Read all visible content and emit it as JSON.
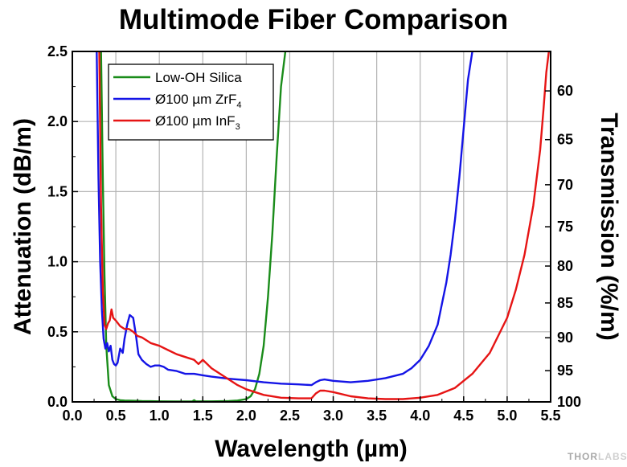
{
  "chart_data": {
    "type": "line",
    "title": "Multimode Fiber Comparison",
    "xlabel": "Wavelength (µm)",
    "ylabel": "Attenuation (dB/m)",
    "y2label": "Transmission (%/m)",
    "xlim": [
      0,
      5.5
    ],
    "ylim": [
      0,
      2.5
    ],
    "x_ticks": [
      0.0,
      0.5,
      1.0,
      1.5,
      2.0,
      2.5,
      3.0,
      3.5,
      4.0,
      4.5,
      5.0,
      5.5
    ],
    "x_tick_labels": [
      "0.0",
      "0.5",
      "1.0",
      "1.5",
      "2.0",
      "2.5",
      "3.0",
      "3.5",
      "4.0",
      "4.5",
      "5.0",
      "5.5"
    ],
    "y_ticks": [
      0.0,
      0.5,
      1.0,
      1.5,
      2.0,
      2.5
    ],
    "y_tick_labels": [
      "0.0",
      "0.5",
      "1.0",
      "1.5",
      "2.0",
      "2.5"
    ],
    "y2_ticks": [
      60,
      65,
      70,
      75,
      80,
      85,
      90,
      95,
      100
    ],
    "y2_tick_labels": [
      "60",
      "65",
      "70",
      "75",
      "80",
      "85",
      "90",
      "95",
      "100"
    ],
    "grid": true,
    "legend_position": "top-left",
    "series": [
      {
        "name": "Low-OH Silica",
        "name_parts": [
          "Low-OH Silica",
          ""
        ],
        "color": "#1a8c1a",
        "x": [
          0.33,
          0.35,
          0.37,
          0.39,
          0.42,
          0.46,
          0.5,
          0.55,
          0.6,
          0.7,
          0.8,
          0.9,
          1.0,
          1.2,
          1.38,
          1.4,
          1.42,
          1.6,
          1.8,
          1.9,
          2.0,
          2.05,
          2.1,
          2.15,
          2.2,
          2.25,
          2.3,
          2.35,
          2.4,
          2.45
        ],
        "y": [
          2.5,
          1.6,
          0.9,
          0.4,
          0.12,
          0.04,
          0.02,
          0.012,
          0.01,
          0.008,
          0.006,
          0.005,
          0.004,
          0.003,
          0.004,
          0.012,
          0.004,
          0.004,
          0.006,
          0.01,
          0.02,
          0.04,
          0.09,
          0.2,
          0.4,
          0.75,
          1.2,
          1.75,
          2.25,
          2.5
        ]
      },
      {
        "name": "Ø100 µm ZrF4",
        "name_parts": [
          "Ø100 µm ZrF",
          "4"
        ],
        "color": "#1414e6",
        "x": [
          0.28,
          0.3,
          0.32,
          0.34,
          0.36,
          0.38,
          0.4,
          0.42,
          0.44,
          0.46,
          0.48,
          0.5,
          0.52,
          0.55,
          0.58,
          0.6,
          0.63,
          0.66,
          0.7,
          0.73,
          0.76,
          0.8,
          0.85,
          0.9,
          0.95,
          1.0,
          1.05,
          1.1,
          1.2,
          1.3,
          1.4,
          1.5,
          1.6,
          1.8,
          2.0,
          2.2,
          2.4,
          2.6,
          2.75,
          2.8,
          2.85,
          2.9,
          3.0,
          3.2,
          3.4,
          3.6,
          3.8,
          3.9,
          4.0,
          4.1,
          4.2,
          4.25,
          4.3,
          4.35,
          4.4,
          4.45,
          4.5,
          4.55,
          4.6
        ],
        "y": [
          2.5,
          1.6,
          1.0,
          0.65,
          0.45,
          0.38,
          0.42,
          0.36,
          0.4,
          0.3,
          0.27,
          0.26,
          0.28,
          0.38,
          0.35,
          0.45,
          0.55,
          0.62,
          0.6,
          0.48,
          0.34,
          0.3,
          0.27,
          0.25,
          0.26,
          0.26,
          0.25,
          0.23,
          0.22,
          0.2,
          0.2,
          0.19,
          0.18,
          0.165,
          0.155,
          0.14,
          0.13,
          0.125,
          0.12,
          0.14,
          0.155,
          0.16,
          0.15,
          0.14,
          0.15,
          0.17,
          0.2,
          0.24,
          0.3,
          0.4,
          0.55,
          0.7,
          0.85,
          1.05,
          1.3,
          1.6,
          1.95,
          2.3,
          2.5
        ]
      },
      {
        "name": "Ø100 µm InF3",
        "name_parts": [
          "Ø100 µm InF",
          "3"
        ],
        "color": "#e61414",
        "x": [
          0.31,
          0.33,
          0.35,
          0.37,
          0.39,
          0.41,
          0.43,
          0.45,
          0.47,
          0.5,
          0.55,
          0.6,
          0.65,
          0.7,
          0.75,
          0.8,
          0.85,
          0.9,
          1.0,
          1.1,
          1.2,
          1.3,
          1.4,
          1.45,
          1.5,
          1.55,
          1.6,
          1.7,
          1.8,
          1.9,
          2.0,
          2.2,
          2.4,
          2.6,
          2.75,
          2.8,
          2.85,
          2.9,
          3.0,
          3.2,
          3.4,
          3.6,
          3.8,
          4.0,
          4.2,
          4.4,
          4.6,
          4.8,
          5.0,
          5.1,
          5.2,
          5.3,
          5.38,
          5.42,
          5.45,
          5.48
        ],
        "y": [
          2.5,
          1.4,
          0.8,
          0.55,
          0.52,
          0.56,
          0.58,
          0.66,
          0.6,
          0.58,
          0.54,
          0.52,
          0.52,
          0.5,
          0.47,
          0.46,
          0.44,
          0.42,
          0.4,
          0.37,
          0.34,
          0.32,
          0.3,
          0.27,
          0.3,
          0.27,
          0.24,
          0.2,
          0.16,
          0.12,
          0.09,
          0.05,
          0.03,
          0.025,
          0.025,
          0.06,
          0.08,
          0.08,
          0.07,
          0.04,
          0.025,
          0.02,
          0.02,
          0.03,
          0.05,
          0.1,
          0.2,
          0.35,
          0.6,
          0.8,
          1.05,
          1.4,
          1.8,
          2.1,
          2.35,
          2.5
        ]
      }
    ]
  },
  "brand": {
    "text_a": "THOR",
    "text_b": "LABS"
  }
}
